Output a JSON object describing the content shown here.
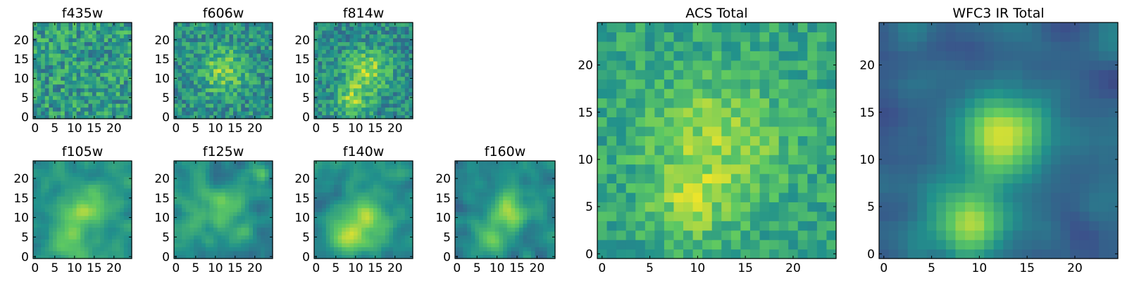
{
  "figure": {
    "colormap": "viridis",
    "colors": [
      "#440154",
      "#3b528b",
      "#21918c",
      "#5ec962",
      "#fde725"
    ],
    "frame_color": "#000000"
  },
  "chart_data": [
    {
      "type": "heatmap",
      "title": "f435w",
      "grid": false,
      "xlim": [
        0,
        24
      ],
      "ylim": [
        0,
        24
      ],
      "xticks": [
        "0",
        "5",
        "10",
        "15",
        "20"
      ],
      "yticks": [
        "0",
        "5",
        "10",
        "15",
        "20"
      ],
      "pixels": 25,
      "texture": "noise",
      "blobs": [],
      "bg": 0.55,
      "noise": 0.42,
      "seed": 11
    },
    {
      "type": "heatmap",
      "title": "f606w",
      "grid": false,
      "xlim": [
        0,
        24
      ],
      "ylim": [
        0,
        24
      ],
      "xticks": [
        "0",
        "5",
        "10",
        "15",
        "20"
      ],
      "yticks": [
        "0",
        "5",
        "10",
        "15",
        "20"
      ],
      "pixels": 25,
      "texture": "noise",
      "blobs": [
        {
          "x": 12,
          "y": 12,
          "amp": 0.3,
          "sigma": 4
        }
      ],
      "bg": 0.5,
      "noise": 0.36,
      "seed": 23
    },
    {
      "type": "heatmap",
      "title": "f814w",
      "grid": false,
      "xlim": [
        0,
        24
      ],
      "ylim": [
        0,
        24
      ],
      "xticks": [
        "0",
        "5",
        "10",
        "15",
        "20"
      ],
      "yticks": [
        "0",
        "5",
        "10",
        "15",
        "20"
      ],
      "pixels": 25,
      "texture": "noise",
      "blobs": [
        {
          "x": 13,
          "y": 12,
          "amp": 0.35,
          "sigma": 4
        },
        {
          "x": 9,
          "y": 4,
          "amp": 0.3,
          "sigma": 3
        }
      ],
      "bg": 0.48,
      "noise": 0.34,
      "seed": 37
    },
    {
      "type": "heatmap",
      "title": "f105w",
      "grid": false,
      "xlim": [
        0,
        24
      ],
      "ylim": [
        0,
        24
      ],
      "xticks": [
        "0",
        "5",
        "10",
        "15",
        "20"
      ],
      "yticks": [
        "0",
        "5",
        "10",
        "15",
        "20"
      ],
      "pixels": 25,
      "texture": "smooth",
      "blobs": [
        {
          "x": 13,
          "y": 12,
          "amp": 0.35,
          "sigma": 4
        },
        {
          "x": 8,
          "y": 4,
          "amp": 0.3,
          "sigma": 3
        }
      ],
      "bg": 0.5,
      "noise": 0.3,
      "seed": 41
    },
    {
      "type": "heatmap",
      "title": "f125w",
      "grid": false,
      "xlim": [
        0,
        24
      ],
      "ylim": [
        0,
        24
      ],
      "xticks": [
        "0",
        "5",
        "10",
        "15",
        "20"
      ],
      "yticks": [
        "0",
        "5",
        "10",
        "15",
        "20"
      ],
      "pixels": 25,
      "texture": "smooth",
      "blobs": [
        {
          "x": 12,
          "y": 12,
          "amp": 0.22,
          "sigma": 4
        },
        {
          "x": 22,
          "y": 21,
          "amp": 0.3,
          "sigma": 1.5
        }
      ],
      "bg": 0.5,
      "noise": 0.32,
      "seed": 53
    },
    {
      "type": "heatmap",
      "title": "f140w",
      "grid": false,
      "xlim": [
        0,
        24
      ],
      "ylim": [
        0,
        24
      ],
      "xticks": [
        "0",
        "5",
        "10",
        "15",
        "20"
      ],
      "yticks": [
        "0",
        "5",
        "10",
        "15",
        "20"
      ],
      "pixels": 25,
      "texture": "smooth",
      "blobs": [
        {
          "x": 12,
          "y": 10,
          "amp": 0.32,
          "sigma": 4
        },
        {
          "x": 9,
          "y": 4,
          "amp": 0.28,
          "sigma": 3
        }
      ],
      "bg": 0.5,
      "noise": 0.3,
      "seed": 67
    },
    {
      "type": "heatmap",
      "title": "f160w",
      "grid": false,
      "xlim": [
        0,
        24
      ],
      "ylim": [
        0,
        24
      ],
      "xticks": [
        "0",
        "5",
        "10",
        "15",
        "20"
      ],
      "yticks": [
        "0",
        "5",
        "10",
        "15",
        "20"
      ],
      "pixels": 25,
      "texture": "smooth",
      "blobs": [
        {
          "x": 13,
          "y": 12,
          "amp": 0.42,
          "sigma": 3.5
        },
        {
          "x": 8,
          "y": 4,
          "amp": 0.32,
          "sigma": 3
        }
      ],
      "bg": 0.45,
      "noise": 0.3,
      "seed": 79
    },
    {
      "type": "heatmap",
      "title": "ACS Total",
      "grid": false,
      "xlim": [
        0,
        24
      ],
      "ylim": [
        0,
        24
      ],
      "xticks": [
        "0",
        "5",
        "10",
        "15",
        "20"
      ],
      "yticks": [
        "0",
        "5",
        "10",
        "15",
        "20"
      ],
      "pixels": 25,
      "texture": "noise",
      "blobs": [
        {
          "x": 12,
          "y": 12,
          "amp": 0.25,
          "sigma": 5
        },
        {
          "x": 9,
          "y": 5,
          "amp": 0.18,
          "sigma": 3
        }
      ],
      "bg": 0.58,
      "noise": 0.26,
      "seed": 97
    },
    {
      "type": "heatmap",
      "title": "WFC3 IR Total",
      "grid": false,
      "xlim": [
        0,
        24
      ],
      "ylim": [
        0,
        24
      ],
      "xticks": [
        "0",
        "5",
        "10",
        "15",
        "20"
      ],
      "yticks": [
        "0",
        "5",
        "10",
        "15",
        "20"
      ],
      "pixels": 25,
      "texture": "smooth",
      "blobs": [
        {
          "x": 12.5,
          "y": 12.5,
          "amp": 0.6,
          "sigma": 3
        },
        {
          "x": 9,
          "y": 3.5,
          "amp": 0.55,
          "sigma": 2.8
        }
      ],
      "bg": 0.33,
      "noise": 0.22,
      "seed": 113
    }
  ]
}
